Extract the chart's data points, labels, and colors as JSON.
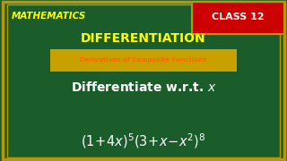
{
  "bg_color": "#1a5c2a",
  "border_color": "#b8960c",
  "title_math": "MATHEMATICS",
  "title_math_color": "#ffff00",
  "title_math_fontsize": 7.5,
  "class_text": "CLASS 12",
  "class_bg": "#cc0000",
  "class_text_color": "#ffffff",
  "class_fontsize": 8,
  "diff_title": "DIFFERENTIATION",
  "diff_title_color": "#ffff00",
  "diff_title_fontsize": 10,
  "subtitle": "Derivatives of Composite Functions",
  "subtitle_color": "#ff6600",
  "subtitle_bg": "#c8a000",
  "subtitle_fontsize": 5.0,
  "line1_text": "Differentiate w.r.t. ",
  "line1_italic": "x",
  "line1_color": "#ffffff",
  "line1_fontsize": 10,
  "line2_color": "#ffffff",
  "line2_fontsize": 10.5
}
